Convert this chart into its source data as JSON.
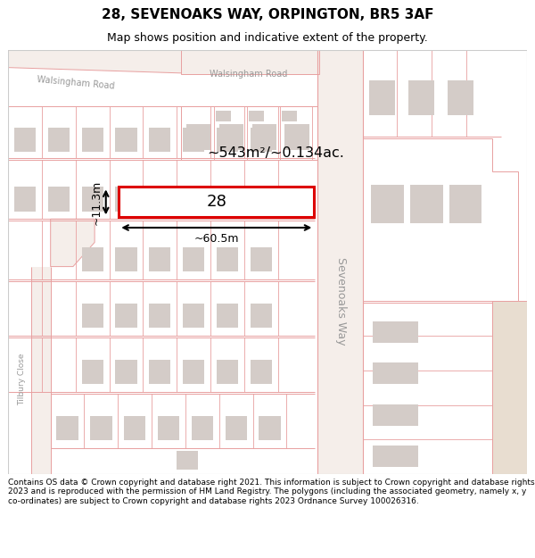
{
  "title": "28, SEVENOAKS WAY, ORPINGTON, BR5 3AF",
  "subtitle": "Map shows position and indicative extent of the property.",
  "footer": "Contains OS data © Crown copyright and database right 2021. This information is subject to Crown copyright and database rights 2023 and is reproduced with the permission of HM Land Registry. The polygons (including the associated geometry, namely x, y co-ordinates) are subject to Crown copyright and database rights 2023 Ordnance Survey 100026316.",
  "map_bg": "#ffffff",
  "road_fill": "#f5eeea",
  "line_color": "#e8a0a0",
  "highlight_color": "#dd0000",
  "building_fill": "#d4ccc8",
  "tan_fill": "#e8ddd0",
  "area_label": "~543m²/~0.134ac.",
  "width_label": "~60.5m",
  "height_label": "~11.3m",
  "property_number": "28",
  "road_label_walsingham_left": "Walsingham Road",
  "road_label_walsingham_right": "Walsingham Road",
  "road_label_sevenoaks": "Sevenoaks Way",
  "road_label_tilbury": "Tilbury Close",
  "title_fontsize": 11,
  "subtitle_fontsize": 9,
  "footer_fontsize": 6.5
}
